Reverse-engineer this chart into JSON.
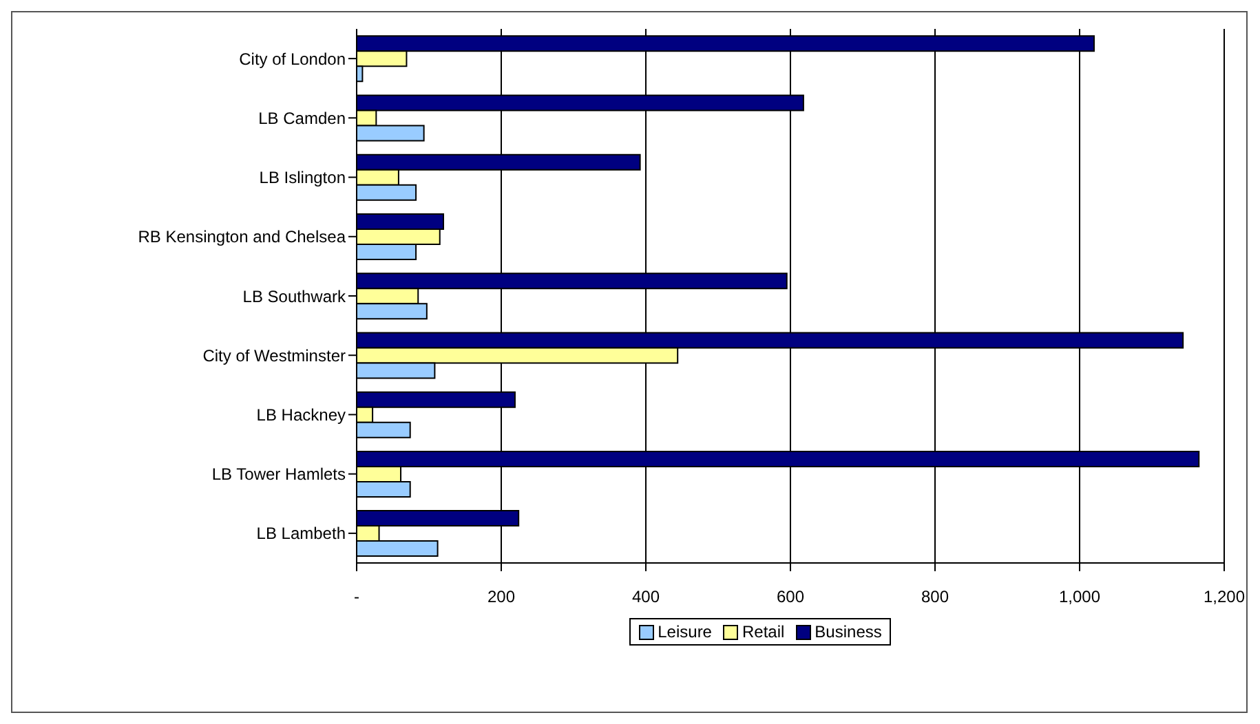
{
  "chart_data": {
    "type": "bar",
    "orientation": "horizontal",
    "categories": [
      "City of London",
      "LB Camden",
      "LB Islington",
      "RB Kensington and Chelsea",
      "LB Southwark",
      "City of Westminster",
      "LB Hackney",
      "LB Tower Hamlets",
      "LB Lambeth"
    ],
    "series": [
      {
        "name": "Leisure",
        "color": "#99ccff",
        "values": [
          8,
          93,
          82,
          82,
          97,
          108,
          74,
          74,
          112
        ]
      },
      {
        "name": "Retail",
        "color": "#ffff99",
        "values": [
          69,
          27,
          58,
          115,
          85,
          444,
          22,
          61,
          31
        ]
      },
      {
        "name": "Business",
        "color": "#000080",
        "values": [
          1020,
          618,
          392,
          120,
          595,
          1143,
          219,
          1165,
          224
        ]
      }
    ],
    "xlim": [
      0,
      1200
    ],
    "xticks": [
      {
        "value": 0,
        "label": "-"
      },
      200,
      400,
      600,
      800,
      {
        "value": 1000,
        "label": "1,000"
      },
      {
        "value": 1200,
        "label": "1,200"
      }
    ],
    "grid": "x",
    "legend": "bottom"
  }
}
